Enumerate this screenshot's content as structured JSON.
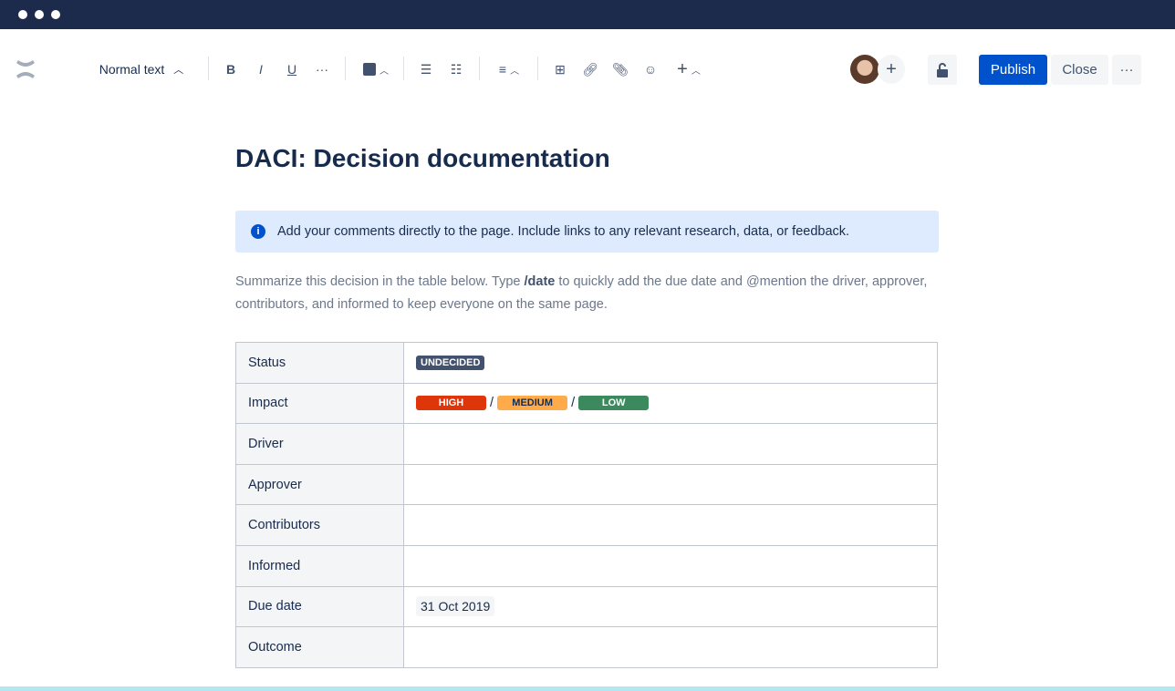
{
  "toolbar": {
    "text_style": "Normal text",
    "publish": "Publish",
    "close": "Close"
  },
  "page": {
    "title": "DACI: Decision documentation",
    "info": "Add your comments directly to the page. Include links to any relevant research, data, or feedback.",
    "summary_pre": "Summarize this decision in the table below. Type ",
    "summary_cmd": "/date",
    "summary_post": " to quickly add the due date and @mention the driver, approver, contributors, and informed to keep everyone on the same page."
  },
  "table": {
    "rows": [
      "Status",
      "Impact",
      "Driver",
      "Approver",
      "Contributors",
      "Informed",
      "Due date",
      "Outcome"
    ],
    "status": {
      "label": "UNDECIDED",
      "color": "#42526e"
    },
    "impact": [
      {
        "label": "HIGH",
        "color": "#de350b"
      },
      {
        "label": "MEDIUM",
        "color": "#ff991f"
      },
      {
        "label": "LOW",
        "color": "#36b37e"
      }
    ],
    "separator": "/",
    "due_date": "31 Oct 2019"
  },
  "colors": {
    "titlebar": "#1c2b4c",
    "primary": "#0052cc",
    "info_bg": "#deebff"
  }
}
